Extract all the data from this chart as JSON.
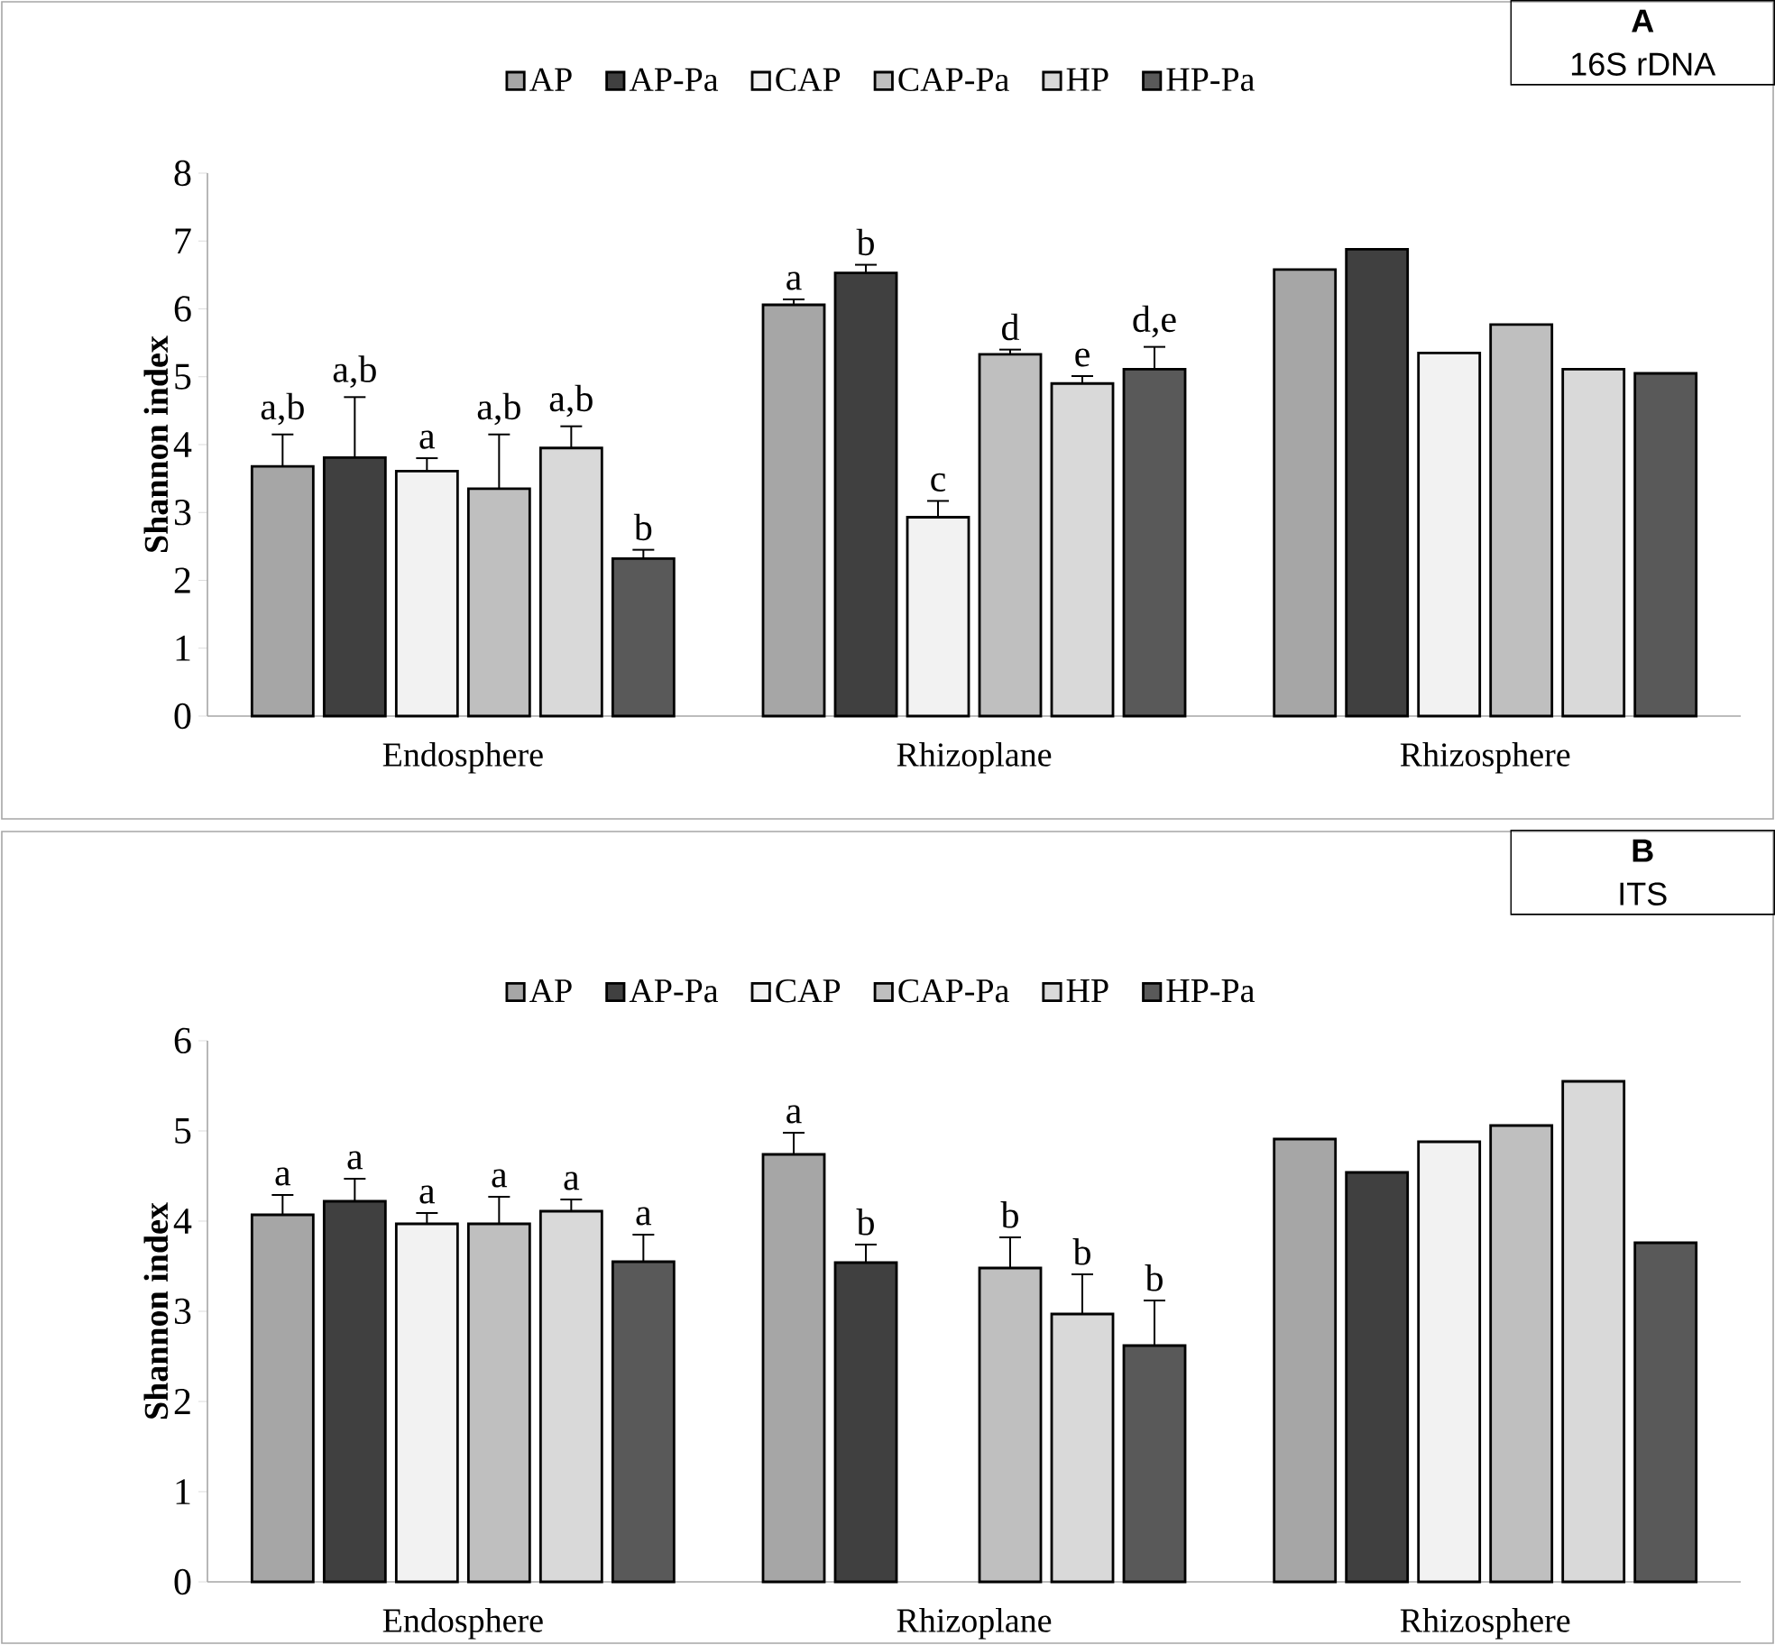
{
  "chart_data": [
    {
      "type": "bar",
      "ylabel": "Shannon index",
      "categories": [
        "Endosphere",
        "Rhizoplane",
        "Rhizosphere"
      ],
      "ylim": [
        0,
        8
      ],
      "yticks": [
        0,
        1,
        2,
        3,
        4,
        5,
        6,
        7,
        8
      ],
      "legend": "top",
      "annotations": [
        "A",
        "16S rDNA"
      ],
      "series": [
        {
          "name": "AP",
          "color": "#a6a6a6",
          "values": [
            3.68,
            6.06,
            6.58
          ],
          "errors": [
            0.47,
            0.08,
            null
          ],
          "value_labels": [
            "a,b",
            "a",
            null
          ]
        },
        {
          "name": "AP-Pa",
          "color": "#404040",
          "values": [
            3.81,
            6.53,
            6.88
          ],
          "errors": [
            0.89,
            0.12,
            null
          ],
          "value_labels": [
            "a,b",
            "b",
            null
          ]
        },
        {
          "name": "CAP",
          "color": "#f2f2f2",
          "values": [
            3.61,
            2.93,
            5.35
          ],
          "errors": [
            0.19,
            0.24,
            null
          ],
          "value_labels": [
            "a",
            "c",
            null
          ]
        },
        {
          "name": "CAP-Pa",
          "color": "#bfbfbf",
          "values": [
            3.35,
            5.33,
            5.77
          ],
          "errors": [
            0.8,
            0.07,
            null
          ],
          "value_labels": [
            "a,b",
            "d",
            null
          ]
        },
        {
          "name": "HP",
          "color": "#d9d9d9",
          "values": [
            3.95,
            4.9,
            5.11
          ],
          "errors": [
            0.32,
            0.11,
            null
          ],
          "value_labels": [
            "a,b",
            "e",
            null
          ]
        },
        {
          "name": "HP-Pa",
          "color": "#595959",
          "values": [
            2.32,
            5.11,
            5.05
          ],
          "errors": [
            0.13,
            0.33,
            null
          ],
          "value_labels": [
            "b",
            "d,e",
            null
          ]
        }
      ]
    },
    {
      "type": "bar",
      "ylabel": "Shannon index",
      "categories": [
        "Endosphere",
        "Rhizoplane",
        "Rhizosphere"
      ],
      "ylim": [
        0,
        6
      ],
      "yticks": [
        0,
        1,
        2,
        3,
        4,
        5,
        6
      ],
      "legend": "top",
      "annotations": [
        "B",
        "ITS"
      ],
      "series": [
        {
          "name": "AP",
          "color": "#a6a6a6",
          "values": [
            4.07,
            4.74,
            4.91
          ],
          "errors": [
            0.22,
            0.24,
            null
          ],
          "value_labels": [
            "a",
            "a",
            null
          ]
        },
        {
          "name": "AP-Pa",
          "color": "#404040",
          "values": [
            4.22,
            3.54,
            4.54
          ],
          "errors": [
            0.25,
            0.2,
            null
          ],
          "value_labels": [
            "a",
            "b",
            null
          ]
        },
        {
          "name": "CAP",
          "color": "#f2f2f2",
          "values": [
            3.97,
            null,
            4.88
          ],
          "errors": [
            0.12,
            null,
            null
          ],
          "value_labels": [
            "a",
            null,
            null
          ]
        },
        {
          "name": "CAP-Pa",
          "color": "#bfbfbf",
          "values": [
            3.97,
            3.48,
            5.06
          ],
          "errors": [
            0.3,
            0.34,
            null
          ],
          "value_labels": [
            "a",
            "b",
            null
          ]
        },
        {
          "name": "HP",
          "color": "#d9d9d9",
          "values": [
            4.11,
            2.97,
            5.55
          ],
          "errors": [
            0.13,
            0.44,
            null
          ],
          "value_labels": [
            "a",
            "b",
            null
          ]
        },
        {
          "name": "HP-Pa",
          "color": "#595959",
          "values": [
            3.55,
            2.62,
            3.76
          ],
          "errors": [
            0.3,
            0.5,
            null
          ],
          "value_labels": [
            "a",
            "b",
            null
          ]
        }
      ]
    }
  ]
}
